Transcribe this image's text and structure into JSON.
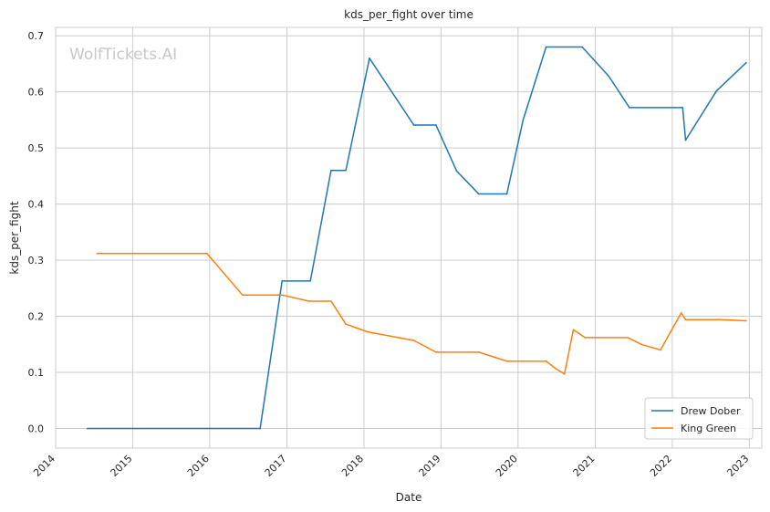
{
  "chart_data": {
    "type": "line",
    "title": "kds_per_fight over time",
    "xlabel": "Date",
    "ylabel": "kds_per_fight",
    "watermark": "WolfTickets.AI",
    "x_axis_type": "date",
    "xlim": [
      "2014-01-01",
      "2023-03-01"
    ],
    "ylim": [
      -0.035,
      0.715
    ],
    "x_ticks": [
      "2014",
      "2015",
      "2016",
      "2017",
      "2018",
      "2019",
      "2020",
      "2021",
      "2022",
      "2023"
    ],
    "y_ticks": [
      "0.0",
      "0.1",
      "0.2",
      "0.3",
      "0.4",
      "0.5",
      "0.6",
      "0.7"
    ],
    "grid": true,
    "legend_position": "lower-right",
    "series": [
      {
        "name": "Drew Dober",
        "color": "#1f77b4",
        "points": [
          [
            "2014-05-31",
            0.0
          ],
          [
            "2016-08-27",
            0.0
          ],
          [
            "2016-12-09",
            0.263
          ],
          [
            "2017-04-22",
            0.263
          ],
          [
            "2017-07-29",
            0.46
          ],
          [
            "2017-10-07",
            0.46
          ],
          [
            "2018-01-27",
            0.66
          ],
          [
            "2018-08-25",
            0.541
          ],
          [
            "2018-12-08",
            0.541
          ],
          [
            "2019-03-16",
            0.459
          ],
          [
            "2019-06-29",
            0.418
          ],
          [
            "2019-11-09",
            0.418
          ],
          [
            "2020-01-25",
            0.55
          ],
          [
            "2020-05-13",
            0.68
          ],
          [
            "2020-10-31",
            0.68
          ],
          [
            "2021-03-06",
            0.628
          ],
          [
            "2021-06-12",
            0.572
          ],
          [
            "2022-02-19",
            0.572
          ],
          [
            "2022-03-05",
            0.514
          ],
          [
            "2022-07-30",
            0.602
          ],
          [
            "2022-12-17",
            0.652
          ]
        ]
      },
      {
        "name": "King Green",
        "color": "#ff7f0e",
        "points": [
          [
            "2014-07-16",
            0.312
          ],
          [
            "2015-12-19",
            0.312
          ],
          [
            "2016-06-04",
            0.238
          ],
          [
            "2016-12-09",
            0.238
          ],
          [
            "2017-04-15",
            0.227
          ],
          [
            "2017-07-29",
            0.227
          ],
          [
            "2017-10-07",
            0.186
          ],
          [
            "2018-01-20",
            0.172
          ],
          [
            "2018-08-25",
            0.157
          ],
          [
            "2018-12-08",
            0.136
          ],
          [
            "2019-06-29",
            0.136
          ],
          [
            "2019-11-09",
            0.12
          ],
          [
            "2020-05-13",
            0.12
          ],
          [
            "2020-06-27",
            0.107
          ],
          [
            "2020-08-08",
            0.097
          ],
          [
            "2020-09-19",
            0.176
          ],
          [
            "2020-11-14",
            0.162
          ],
          [
            "2021-06-05",
            0.162
          ],
          [
            "2021-08-07",
            0.15
          ],
          [
            "2021-11-06",
            0.14
          ],
          [
            "2022-02-12",
            0.206
          ],
          [
            "2022-03-05",
            0.194
          ],
          [
            "2022-08-13",
            0.194
          ],
          [
            "2022-12-17",
            0.192
          ]
        ]
      }
    ]
  }
}
